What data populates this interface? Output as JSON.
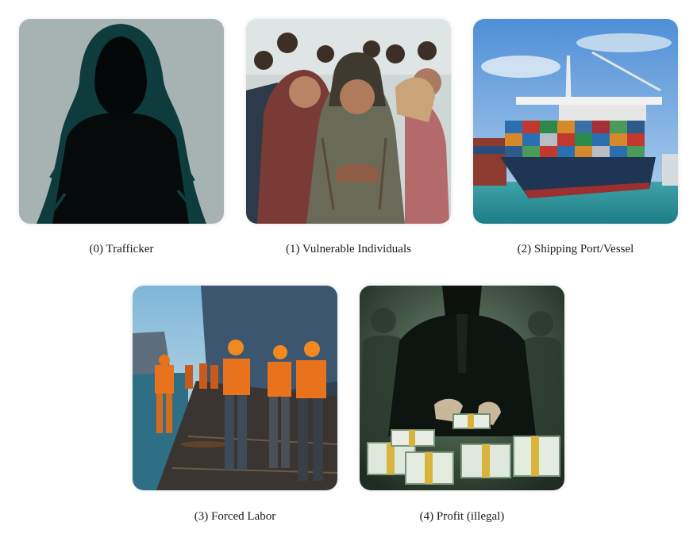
{
  "panels": [
    {
      "label": "(0) Trafficker",
      "icon": "hooded-figure-icon",
      "accent": "#0f3f3f"
    },
    {
      "label": "(1) Vulnerable Individuals",
      "icon": "crowd-icon",
      "accent": "#7a3b36"
    },
    {
      "label": "(2) Shipping Port/Vessel",
      "icon": "cargo-ship-icon",
      "accent": "#1e3553"
    },
    {
      "label": "(3) Forced Labor",
      "icon": "dock-workers-icon",
      "accent": "#e8731c"
    },
    {
      "label": "(4) Profit (illegal)",
      "icon": "cash-stacks-icon",
      "accent": "#2e6b3a"
    }
  ]
}
